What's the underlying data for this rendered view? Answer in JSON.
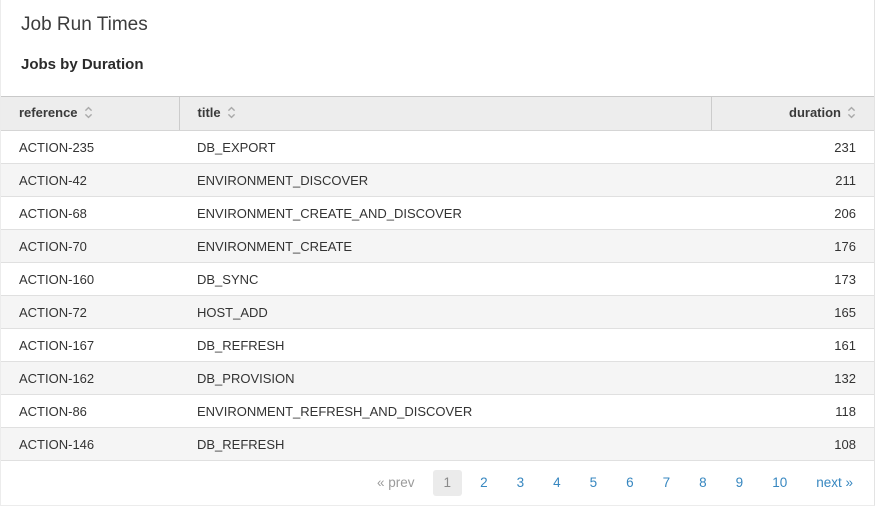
{
  "page": {
    "title": "Job Run Times",
    "subtitle": "Jobs by Duration"
  },
  "table": {
    "columns": [
      {
        "key": "reference",
        "label": "reference",
        "sortable": true,
        "align": "left"
      },
      {
        "key": "title",
        "label": "title",
        "sortable": true,
        "align": "left"
      },
      {
        "key": "duration",
        "label": "duration",
        "sortable": true,
        "align": "right"
      }
    ],
    "rows": [
      {
        "reference": "ACTION-235",
        "title": "DB_EXPORT",
        "duration": 231
      },
      {
        "reference": "ACTION-42",
        "title": "ENVIRONMENT_DISCOVER",
        "duration": 211
      },
      {
        "reference": "ACTION-68",
        "title": "ENVIRONMENT_CREATE_AND_DISCOVER",
        "duration": 206
      },
      {
        "reference": "ACTION-70",
        "title": "ENVIRONMENT_CREATE",
        "duration": 176
      },
      {
        "reference": "ACTION-160",
        "title": "DB_SYNC",
        "duration": 173
      },
      {
        "reference": "ACTION-72",
        "title": "HOST_ADD",
        "duration": 165
      },
      {
        "reference": "ACTION-167",
        "title": "DB_REFRESH",
        "duration": 161
      },
      {
        "reference": "ACTION-162",
        "title": "DB_PROVISION",
        "duration": 132
      },
      {
        "reference": "ACTION-86",
        "title": "ENVIRONMENT_REFRESH_AND_DISCOVER",
        "duration": 118
      },
      {
        "reference": "ACTION-146",
        "title": "DB_REFRESH",
        "duration": 108
      }
    ]
  },
  "pagination": {
    "prev_label": "« prev",
    "pages": [
      "1",
      "2",
      "3",
      "4",
      "5",
      "6",
      "7",
      "8",
      "9",
      "10"
    ],
    "current": "1",
    "next_label": "next »"
  },
  "icons": {
    "sort": "sort-up-down-icon"
  },
  "colors": {
    "link_blue": "#3787c0",
    "header_bg": "#ededed",
    "zebra_gray": "#f5f5f5",
    "active_page_bg": "#ebebeb",
    "muted_gray": "#9b9b9b"
  }
}
